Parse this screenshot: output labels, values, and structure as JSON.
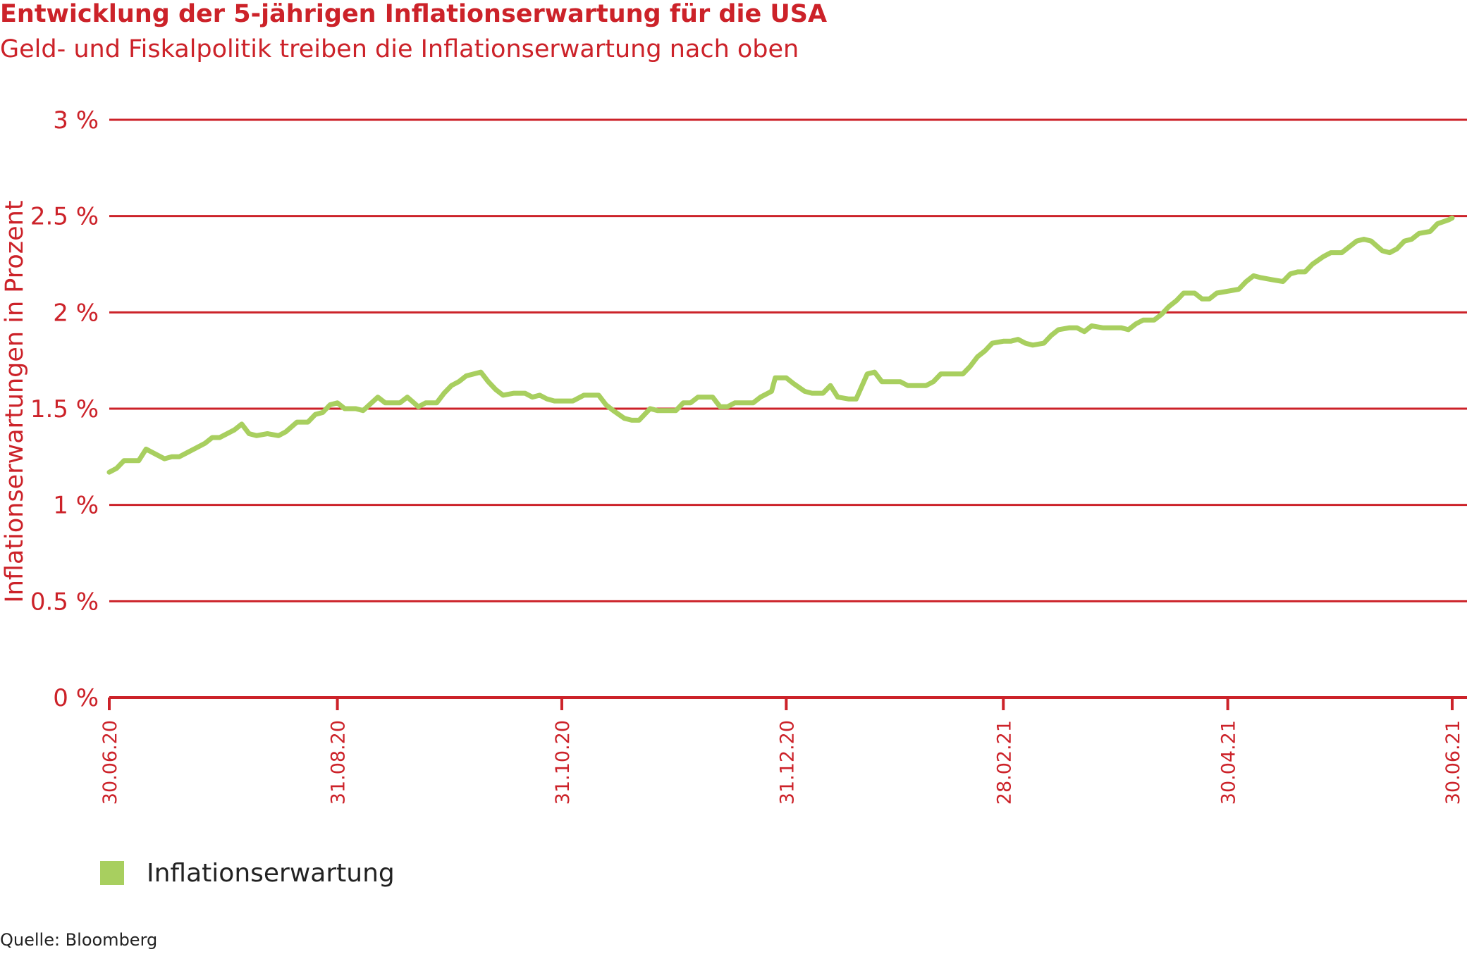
{
  "title": "Entwicklung der 5-jährigen Inflationserwartung für die USA",
  "subtitle": "Geld- und Fiskalpolitik treiben die Inflationserwartung nach oben",
  "source": "Quelle: Bloomberg",
  "colors": {
    "accent": "#cc2229",
    "series": "#a8cf5f",
    "text": "#222222"
  },
  "chart_data": {
    "type": "line",
    "title": "Entwicklung der 5-jährigen Inflationserwartung für die USA",
    "subtitle": "Geld- und Fiskalpolitik treiben die Inflationserwartung nach oben",
    "xlabel": "",
    "ylabel": "Inflationserwartungen in Prozent",
    "ylim": [
      0,
      3
    ],
    "yticks": [
      0,
      0.5,
      1,
      1.5,
      2,
      2.5,
      3
    ],
    "ytick_labels": [
      "0 %",
      "0.5 %",
      "1 %",
      "1.5 %",
      "2 %",
      "2.5 %",
      "3 %"
    ],
    "xlim": [
      "2020-06-30",
      "2021-06-30"
    ],
    "xticks": [
      "2020-06-30",
      "2020-08-31",
      "2020-10-31",
      "2020-12-31",
      "2021-02-28",
      "2021-04-30",
      "2021-06-30"
    ],
    "xtick_labels": [
      "30.06.20",
      "31.08.20",
      "31.10.20",
      "31.12.20",
      "28.02.21",
      "30.04.21",
      "30.06.21"
    ],
    "grid": true,
    "legend_position": "bottom-left",
    "series": [
      {
        "name": "Inflationserwartung",
        "color": "#a8cf5f",
        "points": [
          [
            "2020-06-30",
            1.17
          ],
          [
            "2020-07-02",
            1.19
          ],
          [
            "2020-07-04",
            1.23
          ],
          [
            "2020-07-08",
            1.23
          ],
          [
            "2020-07-10",
            1.29
          ],
          [
            "2020-07-13",
            1.26
          ],
          [
            "2020-07-15",
            1.24
          ],
          [
            "2020-07-17",
            1.25
          ],
          [
            "2020-07-19",
            1.25
          ],
          [
            "2020-07-21",
            1.27
          ],
          [
            "2020-07-24",
            1.3
          ],
          [
            "2020-07-26",
            1.32
          ],
          [
            "2020-07-28",
            1.35
          ],
          [
            "2020-07-30",
            1.35
          ],
          [
            "2020-08-03",
            1.39
          ],
          [
            "2020-08-05",
            1.42
          ],
          [
            "2020-08-07",
            1.37
          ],
          [
            "2020-08-09",
            1.36
          ],
          [
            "2020-08-12",
            1.37
          ],
          [
            "2020-08-15",
            1.36
          ],
          [
            "2020-08-17",
            1.38
          ],
          [
            "2020-08-20",
            1.43
          ],
          [
            "2020-08-23",
            1.43
          ],
          [
            "2020-08-25",
            1.47
          ],
          [
            "2020-08-27",
            1.48
          ],
          [
            "2020-08-29",
            1.52
          ],
          [
            "2020-08-31",
            1.53
          ],
          [
            "2020-09-02",
            1.5
          ],
          [
            "2020-09-05",
            1.5
          ],
          [
            "2020-09-07",
            1.49
          ],
          [
            "2020-09-11",
            1.56
          ],
          [
            "2020-09-13",
            1.53
          ],
          [
            "2020-09-17",
            1.53
          ],
          [
            "2020-09-19",
            1.56
          ],
          [
            "2020-09-22",
            1.51
          ],
          [
            "2020-09-24",
            1.53
          ],
          [
            "2020-09-27",
            1.53
          ],
          [
            "2020-09-29",
            1.58
          ],
          [
            "2020-10-01",
            1.62
          ],
          [
            "2020-10-03",
            1.64
          ],
          [
            "2020-10-05",
            1.67
          ],
          [
            "2020-10-09",
            1.69
          ],
          [
            "2020-10-11",
            1.64
          ],
          [
            "2020-10-13",
            1.6
          ],
          [
            "2020-10-15",
            1.57
          ],
          [
            "2020-10-18",
            1.58
          ],
          [
            "2020-10-21",
            1.58
          ],
          [
            "2020-10-23",
            1.56
          ],
          [
            "2020-10-25",
            1.57
          ],
          [
            "2020-10-27",
            1.55
          ],
          [
            "2020-10-29",
            1.54
          ],
          [
            "2020-11-03",
            1.54
          ],
          [
            "2020-11-06",
            1.57
          ],
          [
            "2020-11-10",
            1.57
          ],
          [
            "2020-11-12",
            1.52
          ],
          [
            "2020-11-14",
            1.49
          ],
          [
            "2020-11-17",
            1.45
          ],
          [
            "2020-11-19",
            1.44
          ],
          [
            "2020-11-21",
            1.44
          ],
          [
            "2020-11-24",
            1.5
          ],
          [
            "2020-11-26",
            1.49
          ],
          [
            "2020-12-01",
            1.49
          ],
          [
            "2020-12-03",
            1.53
          ],
          [
            "2020-12-05",
            1.53
          ],
          [
            "2020-12-07",
            1.56
          ],
          [
            "2020-12-11",
            1.56
          ],
          [
            "2020-12-13",
            1.51
          ],
          [
            "2020-12-15",
            1.51
          ],
          [
            "2020-12-17",
            1.53
          ],
          [
            "2020-12-22",
            1.53
          ],
          [
            "2020-12-24",
            1.56
          ],
          [
            "2020-12-27",
            1.59
          ],
          [
            "2020-12-28",
            1.66
          ],
          [
            "2020-12-31",
            1.66
          ],
          [
            "2021-01-02",
            1.63
          ],
          [
            "2021-01-05",
            1.59
          ],
          [
            "2021-01-07",
            1.58
          ],
          [
            "2021-01-10",
            1.58
          ],
          [
            "2021-01-12",
            1.62
          ],
          [
            "2021-01-14",
            1.56
          ],
          [
            "2021-01-17",
            1.55
          ],
          [
            "2021-01-19",
            1.55
          ],
          [
            "2021-01-22",
            1.68
          ],
          [
            "2021-01-24",
            1.69
          ],
          [
            "2021-01-26",
            1.64
          ],
          [
            "2021-01-28",
            1.64
          ],
          [
            "2021-01-31",
            1.64
          ],
          [
            "2021-02-02",
            1.62
          ],
          [
            "2021-02-05",
            1.62
          ],
          [
            "2021-02-07",
            1.62
          ],
          [
            "2021-02-09",
            1.64
          ],
          [
            "2021-02-11",
            1.68
          ],
          [
            "2021-02-14",
            1.68
          ],
          [
            "2021-02-17",
            1.68
          ],
          [
            "2021-02-19",
            1.72
          ],
          [
            "2021-02-21",
            1.77
          ],
          [
            "2021-02-23",
            1.8
          ],
          [
            "2021-02-25",
            1.84
          ],
          [
            "2021-02-28",
            1.85
          ],
          [
            "2021-03-02",
            1.85
          ],
          [
            "2021-03-04",
            1.86
          ],
          [
            "2021-03-06",
            1.84
          ],
          [
            "2021-03-08",
            1.83
          ],
          [
            "2021-03-11",
            1.84
          ],
          [
            "2021-03-13",
            1.88
          ],
          [
            "2021-03-15",
            1.91
          ],
          [
            "2021-03-18",
            1.92
          ],
          [
            "2021-03-20",
            1.92
          ],
          [
            "2021-03-22",
            1.9
          ],
          [
            "2021-03-24",
            1.93
          ],
          [
            "2021-03-27",
            1.92
          ],
          [
            "2021-04-01",
            1.92
          ],
          [
            "2021-04-03",
            1.91
          ],
          [
            "2021-04-05",
            1.94
          ],
          [
            "2021-04-07",
            1.96
          ],
          [
            "2021-04-10",
            1.96
          ],
          [
            "2021-04-12",
            1.99
          ],
          [
            "2021-04-14",
            2.03
          ],
          [
            "2021-04-16",
            2.06
          ],
          [
            "2021-04-18",
            2.1
          ],
          [
            "2021-04-21",
            2.1
          ],
          [
            "2021-04-23",
            2.07
          ],
          [
            "2021-04-25",
            2.07
          ],
          [
            "2021-04-27",
            2.1
          ],
          [
            "2021-04-30",
            2.11
          ],
          [
            "2021-05-03",
            2.12
          ],
          [
            "2021-05-05",
            2.16
          ],
          [
            "2021-05-07",
            2.19
          ],
          [
            "2021-05-09",
            2.18
          ],
          [
            "2021-05-12",
            2.17
          ],
          [
            "2021-05-15",
            2.16
          ],
          [
            "2021-05-17",
            2.2
          ],
          [
            "2021-05-19",
            2.21
          ],
          [
            "2021-05-21",
            2.21
          ],
          [
            "2021-05-23",
            2.25
          ],
          [
            "2021-05-26",
            2.29
          ],
          [
            "2021-05-28",
            2.31
          ],
          [
            "2021-05-31",
            2.31
          ],
          [
            "2021-06-02",
            2.34
          ],
          [
            "2021-06-04",
            2.37
          ],
          [
            "2021-06-06",
            2.38
          ],
          [
            "2021-06-08",
            2.37
          ],
          [
            "2021-06-11",
            2.32
          ],
          [
            "2021-06-13",
            2.31
          ],
          [
            "2021-06-15",
            2.33
          ],
          [
            "2021-06-17",
            2.37
          ],
          [
            "2021-06-19",
            2.38
          ],
          [
            "2021-06-21",
            2.41
          ],
          [
            "2021-06-24",
            2.42
          ],
          [
            "2021-06-26",
            2.46
          ],
          [
            "2021-06-29",
            2.48
          ],
          [
            "2021-06-30",
            2.49
          ]
        ]
      }
    ]
  },
  "legend": {
    "label": "Inflationserwartung"
  }
}
